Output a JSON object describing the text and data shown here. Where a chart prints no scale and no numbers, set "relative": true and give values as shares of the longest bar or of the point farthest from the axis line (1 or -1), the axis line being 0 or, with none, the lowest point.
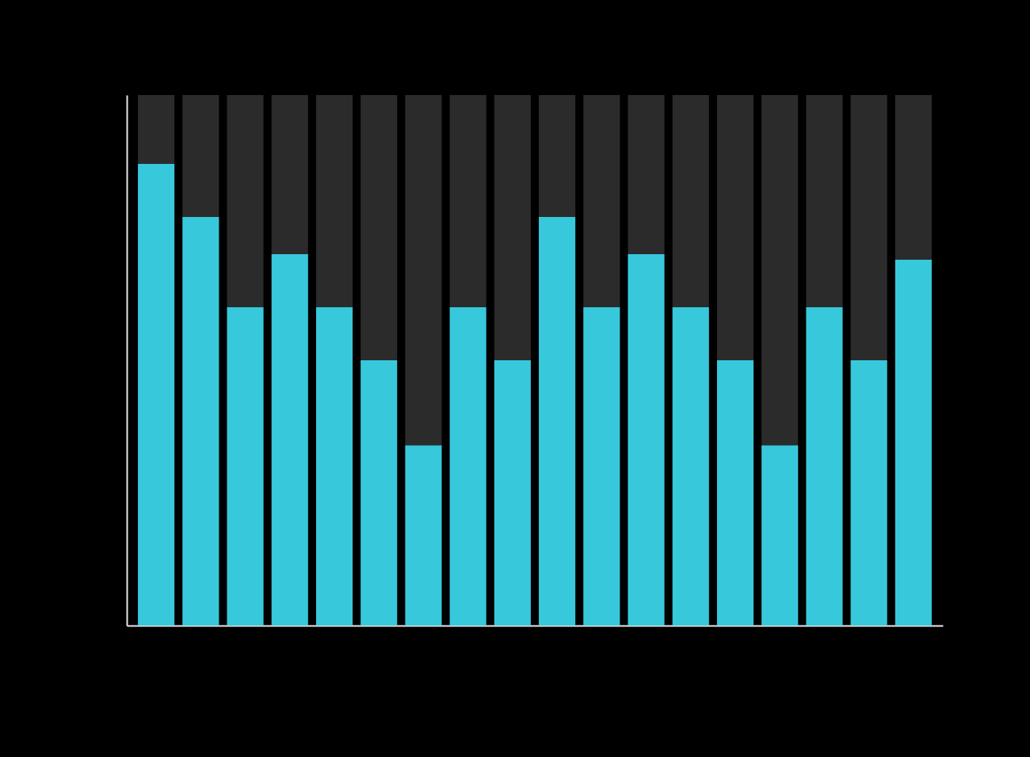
{
  "chart_data": {
    "type": "bar",
    "relative": true,
    "stacked": true,
    "categories": [
      null,
      null,
      null,
      null,
      null,
      null,
      null,
      null,
      null,
      null,
      null,
      null,
      null,
      null,
      null,
      null,
      null,
      null
    ],
    "series": [
      {
        "color": "#38c8dc",
        "values": [
          0.87,
          0.77,
          0.6,
          0.7,
          0.6,
          0.5,
          0.34,
          0.6,
          0.5,
          0.77,
          0.6,
          0.7,
          0.6,
          0.5,
          0.34,
          0.6,
          0.5,
          0.69
        ]
      },
      {
        "color": "#2b2b2b",
        "values": [
          0.13,
          0.23,
          0.4,
          0.3,
          0.4,
          0.5,
          0.66,
          0.4,
          0.5,
          0.23,
          0.4,
          0.3,
          0.4,
          0.5,
          0.66,
          0.4,
          0.5,
          0.31
        ]
      }
    ]
  }
}
